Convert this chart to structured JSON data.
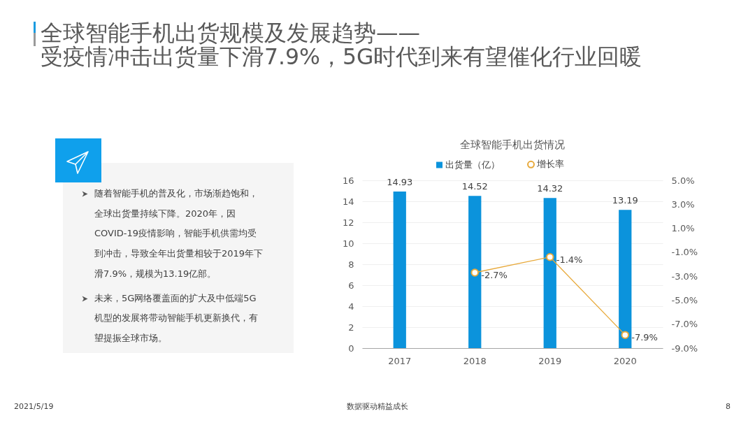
{
  "chart_data": [
    {
      "type": "other",
      "title": "全球智能手机出货规模及发展趋势——",
      "subtitle": "受疫情冲击出货量下滑7.9%，5G时代到来有望催化行业回暖",
      "annotations": [
        "随着智能手机的普及化，市场渐趋饱和，全球出货量持续下降。2020年，因COVID-19疫情影响，智能手机供需均受到冲击，导致全年出货量相较于2019年下滑7.9%，规模为13.19亿部。",
        "未来，5G网络覆盖面的扩大及中低端5G机型的发展将带动智能手机更新换代，有望提振全球市场。",
        "2021/5/19",
        "数据驱动精益成长",
        "8"
      ]
    },
    {
      "type": "bar",
      "title": "全球智能手机出货情况",
      "categories": [
        "2017",
        "2018",
        "2019",
        "2020"
      ],
      "series": [
        {
          "name": "出货量（亿）",
          "type": "bar",
          "color": "#0b93dc",
          "values": [
            14.93,
            14.52,
            14.32,
            13.19
          ]
        },
        {
          "name": "增长率",
          "type": "line",
          "axis": "y2",
          "color": "#e8a93a",
          "marker": "circle",
          "values": [
            null,
            -2.7,
            -1.4,
            -7.9
          ],
          "value_labels": [
            null,
            "-2.7%",
            "-1.4%",
            "-7.9%"
          ]
        }
      ],
      "data_labels": true,
      "ylim": [
        0,
        16
      ],
      "yticks": [
        0,
        2,
        4,
        6,
        8,
        10,
        12,
        14,
        16
      ],
      "y2lim": [
        -9,
        5
      ],
      "y2ticks": [
        {
          "value": 5,
          "label": "5.0%"
        },
        {
          "value": 3,
          "label": "3.0%"
        },
        {
          "value": 1,
          "label": "1.0%"
        },
        {
          "value": -1,
          "label": "-1.0%"
        },
        {
          "value": -3,
          "label": "-3.0%"
        },
        {
          "value": -5,
          "label": "-5.0%"
        },
        {
          "value": -7,
          "label": "-7.0%"
        },
        {
          "value": -9,
          "label": "-9.0%"
        }
      ],
      "grid": "y",
      "legend": "top"
    }
  ]
}
